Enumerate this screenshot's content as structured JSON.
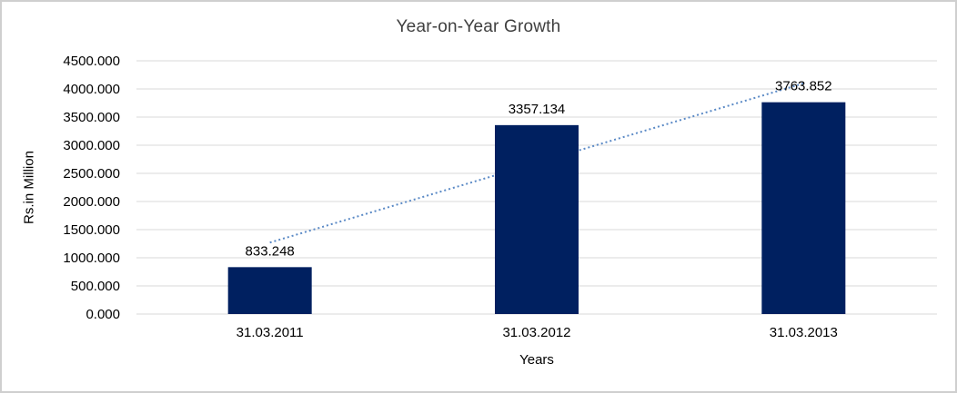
{
  "chart_data": {
    "type": "bar",
    "title": "Year-on-Year Growth",
    "xlabel": "Years",
    "ylabel": "Rs.in Million",
    "categories": [
      "31.03.2011",
      "31.03.2012",
      "31.03.2013"
    ],
    "values": [
      833.248,
      3357.134,
      3763.852
    ],
    "data_labels": [
      "833.248",
      "3357.134",
      "3763.852"
    ],
    "y_ticks": [
      "0.000",
      "500.000",
      "1000.000",
      "1500.000",
      "2000.000",
      "2500.000",
      "3000.000",
      "3500.000",
      "4000.000",
      "4500.000"
    ],
    "ylim": [
      0,
      4500
    ],
    "y_step": 500,
    "grid": "horizontal",
    "legend": "none",
    "trendline": {
      "style": "dotted",
      "start": {
        "category_index": 0,
        "value": 1270
      },
      "end": {
        "category_index": 2,
        "value": 4100
      }
    },
    "colors": {
      "bar": "#002060",
      "trendline": "#5B8AC6",
      "gridline": "#D9D9D9",
      "title_text": "#3F3F3F",
      "axis_text": "#000000",
      "frame_border": "#CFCFCF"
    }
  }
}
